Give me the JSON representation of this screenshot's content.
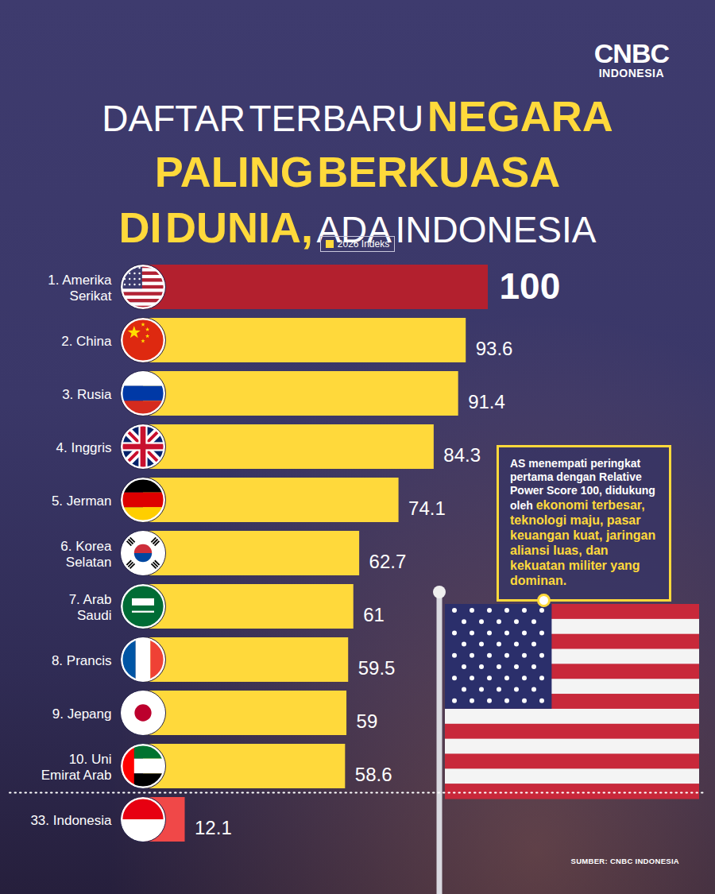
{
  "chart_data": {
    "type": "bar",
    "orientation": "horizontal",
    "title": "DAFTAR TERBARU NEGARA PALING BERKUASA DI DUNIA, ADA INDONESIA",
    "logo": "CNBC INDONESIA",
    "categories": [
      "1. Amerika Serikat",
      "2. China",
      "3. Rusia",
      "4. Inggris",
      "5. Jerman",
      "6. Korea Selatan",
      "7. Arab Saudi",
      "8. Prancis",
      "9. Jepang",
      "10. Uni Emirat Arab",
      "33. Indonesia"
    ],
    "series": [
      {
        "name": "2026 Indeks",
        "color": "#ffd93b",
        "colors": [
          "#b3202e",
          "#ffd93b",
          "#ffd93b",
          "#ffd93b",
          "#ffd93b",
          "#ffd93b",
          "#ffd93b",
          "#ffd93b",
          "#ffd93b",
          "#ffd93b",
          "#f04848"
        ],
        "values": [
          100,
          93.6,
          91.4,
          84.3,
          74.1,
          62.7,
          61,
          59.5,
          59,
          58.6,
          12.1
        ]
      }
    ],
    "xlim": [
      0,
      100
    ],
    "tick_labels": "y",
    "data_labels": true,
    "legend": "top",
    "grid": false,
    "annotations": [
      {
        "text": "AS menempati peringkat pertama dengan Relative Power Score 100, didukung oleh",
        "emphasis": false
      },
      {
        "text": "ekonomi terbesar, teknologi maju, pasar keuangan kuat, jaringan aliansi luas, dan kekuatan militer yang dominan.",
        "emphasis": true
      }
    ],
    "source": "SUMBER: CNBC INDONESIA"
  }
}
